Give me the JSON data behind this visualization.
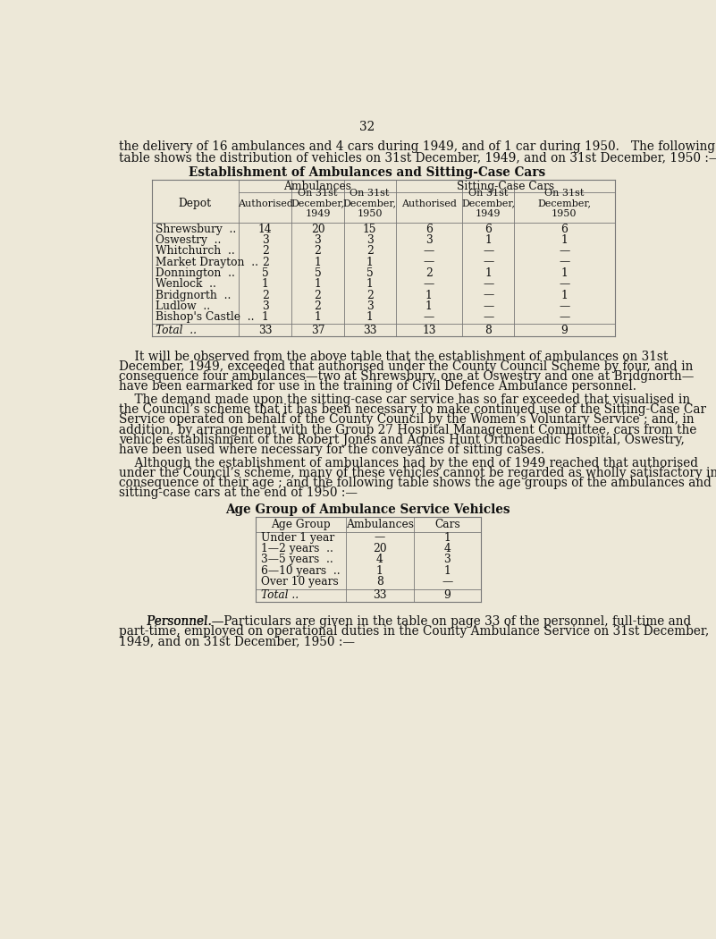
{
  "bg_color": "#ede8d8",
  "page_number": "32",
  "intro_text_line1": "the delivery of 16 ambulances and 4 cars during 1949, and of 1 car during 1950.   The following",
  "intro_text_line2": "table shows the distribution of vehicles on 31st December, 1949, and on 31st December, 1950 :—",
  "table1_title": "Establishment of Ambulances and Sitting-Case Cars",
  "table1_subcols": [
    "Authorised",
    "On 31st\nDecember,\n1949",
    "On 31st\nDecember,\n1950",
    "Authorised",
    "On 31st\nDecember,\n1949",
    "On 31st\nDecember,\n1950"
  ],
  "table1_depots": [
    "Shrewsbury",
    "Oswestry",
    "Whitchurch",
    "Market Drayton",
    "Donnington",
    "Wenlock",
    "Bridgnorth",
    "Ludlow",
    "Bishop's Castle"
  ],
  "table1_depot_dots": [
    "..",
    "..",
    "..",
    "..",
    "..",
    "..",
    "..",
    "..",
    ".."
  ],
  "table1_data": [
    [
      "14",
      "20",
      "15",
      "6",
      "6",
      "6"
    ],
    [
      "3",
      "3",
      "3",
      "3",
      "1",
      "1"
    ],
    [
      "2",
      "2",
      "2",
      "—",
      "—",
      "—"
    ],
    [
      "2",
      "1",
      "1",
      "—",
      "—",
      "—"
    ],
    [
      "5",
      "5",
      "5",
      "2",
      "1",
      "1"
    ],
    [
      "1",
      "1",
      "1",
      "—",
      "—",
      "—"
    ],
    [
      "2",
      "2",
      "2",
      "1",
      "—",
      "1"
    ],
    [
      "3",
      "2",
      "3",
      "1",
      "—",
      "—"
    ],
    [
      "1",
      "1",
      "1",
      "—",
      "—",
      "—"
    ]
  ],
  "table1_total": [
    "33",
    "37",
    "33",
    "13",
    "8",
    "9"
  ],
  "para1_lines": [
    "    It will be observed from the above table that the establishment of ambulances on 31st",
    "December, 1949, exceeded that authorised under the County Council Scheme by four, and in",
    "consequence four ambulances—two at Shrewsbury, one at Oswestry and one at Bridgnorth—",
    "have been earmarked for use in the training of Civil Defence Ambulance personnel."
  ],
  "para2_lines": [
    "    The demand made upon the sitting-case car service has so far exceeded that visualised in",
    "the Council’s scheme that it has been necessary to make continued use of the Sitting-Case Car",
    "Service operated on behalf of the County Council by the Women’s Voluntary Service ; and, in",
    "addition, by arrangement with the Group 27 Hospital Management Committee, cars from the",
    "vehicle establishment of the Robert Jones and Agnes Hunt Orthopaedic Hospital, Oswestry,",
    "have been used where necessary for the conveyance of sitting cases."
  ],
  "para3_lines": [
    "    Although the establishment of ambulances had by the end of 1949 reached that authorised",
    "under the Council’s scheme, many of these vehicles cannot be regarded as wholly satisfactory in",
    "consequence of their age ; and the following table shows the age groups of the ambulances and",
    "sitting-case cars at the end of 1950 :—"
  ],
  "table2_title": "Age Group of Ambulance Service Vehicles",
  "table2_cols": [
    "Age Group",
    "Ambulances",
    "Cars"
  ],
  "table2_data": [
    [
      "Under 1 year",
      "—",
      "1"
    ],
    [
      "1—2 years  ..",
      "20",
      "4"
    ],
    [
      "3—5 years  ..",
      "4",
      "3"
    ],
    [
      "6—10 years  ..",
      "1",
      "1"
    ],
    [
      "Over 10 years",
      "8",
      "—"
    ]
  ],
  "table2_total": [
    "33",
    "9"
  ],
  "para4_lines": [
    "      Personnel.—Particulars are given in the table on page 33 of the personnel, full-time and",
    "part-time, employed on operational duties in the County Ambulance Service on 31st December,",
    "1949, and on 31st December, 1950 :—"
  ]
}
